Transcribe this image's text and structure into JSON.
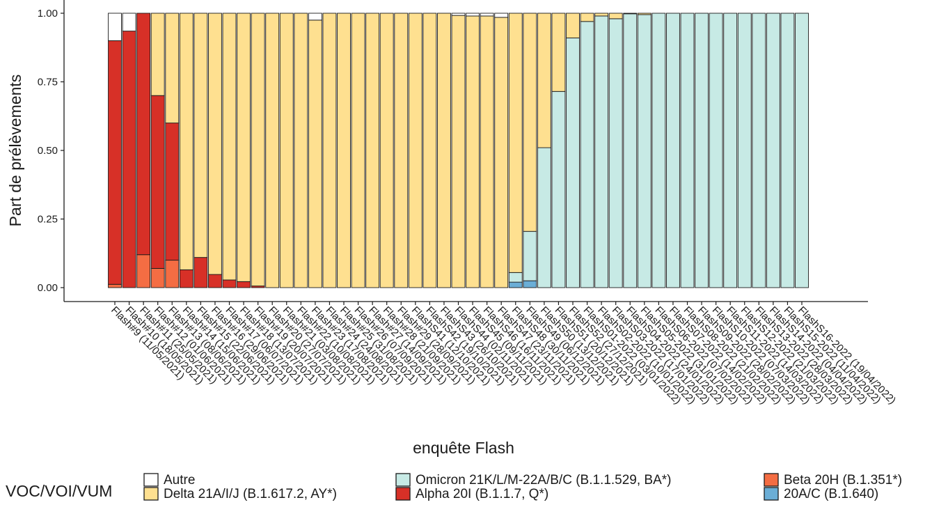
{
  "chart_data": {
    "type": "bar",
    "stacked": true,
    "xlabel": "enquête Flash",
    "ylabel": "Part de prélèvements",
    "ylim": [
      0,
      1
    ],
    "yticks": [
      "0.00",
      "0.25",
      "0.50",
      "0.75",
      "1.00"
    ],
    "grid": false,
    "legend_title": "VOC/VOI/VUM",
    "legend_position": "bottom",
    "categories": [
      "Flash#9 (11/05/2021)",
      "Flash#10 (18/05/2021)",
      "Flash#11 (25/05/2021)",
      "Flash#12 (01/06/2021)",
      "Flash#13 (08/06/2021)",
      "Flash#14 (15/06/2021)",
      "Flash#15 (22/06/2021)",
      "Flash#16 (29/06/2021)",
      "Flash#17 (06/07/2021)",
      "Flash#18 (13/07/2021)",
      "Flash#19 (20/07/2021)",
      "Flash#20 (27/07/2021)",
      "Flash#21 (03/08/2021)",
      "Flash#22 (10/08/2021)",
      "Flash#23 (17/08/2021)",
      "Flash#24 (24/08/2021)",
      "Flash#25 (31/08/2021)",
      "Flash#26 (07/09/2021)",
      "Flash#27 (14/09/2021)",
      "Flash#28 (21/09/2021)",
      "Flash#29 (28/09/2021)",
      "FlashS41 (12/10/2021)",
      "FlashS42 (19/10/2021)",
      "FlashS43 (26/10/2021)",
      "FlashS44 (02/11/2021)",
      "FlashS45 (09/11/2021)",
      "FlashS46 (16/11/2021)",
      "FlashS47 (23/11/2021)",
      "FlashS48 (30/11/2021)",
      "FlashS49 (06/12/2021)",
      "FlashS50 (13/12/2021)",
      "FlashS51 (20/12/2021)",
      "FlashS52 (27/12/2021)",
      "FlashS01-2022 (03/01/2022)",
      "FlashS02-2022 (10/01/2022)",
      "FlashS03-2022 (17/01/2022)",
      "FlashS04-2022 (24/01/2022)",
      "FlashS05-2022 (31/01/2022)",
      "FlashS06-2022 (07/02/2022)",
      "FlashS07-2022 (14/02/2022)",
      "FlashS08-2022 (21/02/2022)",
      "FlashS09-2022 (28/02/2022)",
      "FlashS10-2022 (07/03/2022)",
      "FlashS11-2022 (14/03/2022)",
      "FlashS12-2022 (21/03/2022)",
      "FlashS13-2022 (28/03/2022)",
      "FlashS14-2022 (04/04/2022)",
      "FlashS15-2022 (11/04/2022)",
      "FlashS16-2022 (19/04/2022)"
    ],
    "series": [
      {
        "name": "20A/C (B.1.640)",
        "color": "#6BAED6",
        "values": [
          0,
          0,
          0,
          0,
          0,
          0,
          0,
          0,
          0,
          0,
          0,
          0,
          0,
          0,
          0,
          0,
          0,
          0,
          0,
          0,
          0,
          0,
          0,
          0,
          0,
          0,
          0,
          0,
          0.02,
          0.025,
          0,
          0,
          0,
          0,
          0,
          0,
          0,
          0,
          0,
          0,
          0,
          0,
          0,
          0,
          0,
          0,
          0,
          0,
          0
        ]
      },
      {
        "name": "Beta 20H (B.1.351*)",
        "color": "#F46D43",
        "values": [
          0.012,
          0,
          0.12,
          0.07,
          0.1,
          0,
          0,
          0,
          0,
          0,
          0,
          0,
          0,
          0,
          0,
          0,
          0,
          0,
          0,
          0,
          0,
          0,
          0,
          0,
          0,
          0,
          0,
          0,
          0,
          0,
          0,
          0,
          0,
          0,
          0,
          0,
          0,
          0,
          0,
          0,
          0,
          0,
          0,
          0,
          0,
          0,
          0,
          0,
          0
        ]
      },
      {
        "name": "Alpha 20I (B.1.1.7, Q*)",
        "color": "#D73027",
        "values": [
          0.888,
          0.935,
          0.88,
          0.63,
          0.5,
          0.065,
          0.11,
          0.048,
          0.028,
          0.022,
          0.006,
          0,
          0,
          0,
          0,
          0,
          0,
          0,
          0,
          0,
          0,
          0,
          0,
          0,
          0,
          0,
          0,
          0,
          0,
          0,
          0,
          0,
          0,
          0,
          0,
          0,
          0,
          0,
          0,
          0,
          0,
          0,
          0,
          0,
          0,
          0,
          0,
          0,
          0
        ]
      },
      {
        "name": "Omicron 21K/L/M-22A/B/C (B.1.1.529, BA*)",
        "color": "#C7EAE5",
        "values": [
          0,
          0,
          0,
          0,
          0,
          0,
          0,
          0,
          0,
          0,
          0,
          0,
          0,
          0,
          0,
          0,
          0,
          0,
          0,
          0,
          0,
          0,
          0,
          0,
          0,
          0,
          0,
          0,
          0.035,
          0.18,
          0.51,
          0.715,
          0.91,
          0.97,
          0.99,
          0.98,
          0.998,
          0.995,
          1,
          1,
          1,
          1,
          1,
          1,
          1,
          1,
          1,
          1,
          1
        ]
      },
      {
        "name": "Delta 21A/I/J (B.1.617.2, AY*)",
        "color": "#FEE090",
        "values": [
          0,
          0,
          0,
          0.3,
          0.4,
          0.935,
          0.89,
          0.952,
          0.972,
          0.978,
          0.994,
          1,
          1,
          1,
          0.975,
          1,
          1,
          1,
          1,
          1,
          1,
          1,
          1,
          1,
          0.992,
          0.99,
          0.99,
          0.985,
          0.945,
          0.795,
          0.49,
          0.285,
          0.09,
          0.03,
          0.01,
          0.02,
          0.002,
          0.005,
          0,
          0,
          0,
          0,
          0,
          0,
          0,
          0,
          0,
          0,
          0
        ]
      },
      {
        "name": "Autre",
        "color": "#FFFFFF",
        "values": [
          0.1,
          0.065,
          0,
          0,
          0,
          0,
          0,
          0,
          0,
          0,
          0,
          0,
          0,
          0,
          0.025,
          0,
          0,
          0,
          0,
          0,
          0,
          0,
          0,
          0,
          0.008,
          0.01,
          0.01,
          0.015,
          0,
          0,
          0,
          0,
          0,
          0,
          0,
          0,
          0,
          0,
          0,
          0,
          0,
          0,
          0,
          0,
          0,
          0,
          0,
          0,
          0
        ]
      }
    ],
    "legend": [
      {
        "name": "Autre",
        "color": "#FFFFFF"
      },
      {
        "name": "Delta 21A/I/J (B.1.617.2, AY*)",
        "color": "#FEE090"
      },
      {
        "name": "Omicron 21K/L/M-22A/B/C (B.1.1.529, BA*)",
        "color": "#C7EAE5"
      },
      {
        "name": "Alpha 20I (B.1.1.7, Q*)",
        "color": "#D73027"
      },
      {
        "name": "Beta 20H (B.1.351*)",
        "color": "#F46D43"
      },
      {
        "name": "20A/C (B.1.640)",
        "color": "#6BAED6"
      }
    ]
  }
}
